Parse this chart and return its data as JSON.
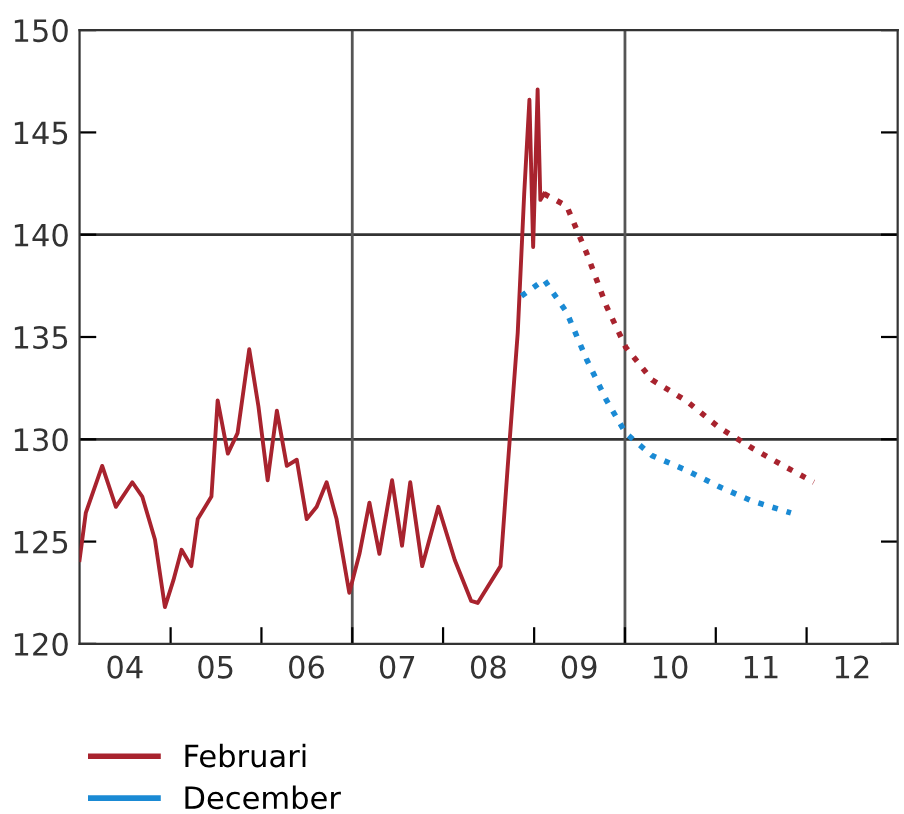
{
  "chart_data": {
    "type": "line",
    "xlim": [
      "2004-01-01",
      "2013-01-01"
    ],
    "xticks": [
      {
        "value": "2005-01-01",
        "label": null
      },
      {
        "value": "2006-01-01",
        "label": null
      },
      {
        "value": "2007-01-01",
        "label": null
      },
      {
        "value": "2008-01-01",
        "label": null
      },
      {
        "value": "2009-01-01",
        "label": null
      },
      {
        "value": "2010-01-01",
        "label": null
      },
      {
        "value": "2011-01-01",
        "label": null
      },
      {
        "value": "2012-01-01",
        "label": null
      },
      {
        "value": "2004-07-01",
        "label": "04"
      },
      {
        "value": "2005-07-01",
        "label": "05"
      },
      {
        "value": "2006-07-01",
        "label": "06"
      },
      {
        "value": "2007-07-01",
        "label": "07"
      },
      {
        "value": "2008-07-01",
        "label": "08"
      },
      {
        "value": "2009-07-01",
        "label": "09"
      },
      {
        "value": "2010-07-01",
        "label": "10"
      },
      {
        "value": "2011-07-01",
        "label": "11"
      },
      {
        "value": "2012-07-01",
        "label": "12"
      }
    ],
    "ylim": [
      120,
      150
    ],
    "yticks": [
      120,
      125,
      130,
      135,
      140,
      145,
      150
    ],
    "ref_lines": [
      {
        "axis": "y",
        "value": 130,
        "color": "#333333"
      },
      {
        "axis": "y",
        "value": 140,
        "color": "#333333"
      },
      {
        "axis": "x",
        "value": "2007-01-01",
        "color": "#555555"
      },
      {
        "axis": "x",
        "value": "2010-01-01",
        "color": "#555555"
      }
    ],
    "legend": "bottom",
    "series": [
      {
        "name": "Februari",
        "color": "#a8232e",
        "line_style": "solid",
        "x": [
          "2004-01-01",
          "2004-01-26",
          "2004-04-01",
          "2004-05-26",
          "2004-07-31",
          "2004-09-09",
          "2004-10-30",
          "2004-12-09",
          "2005-01-12",
          "2005-02-14",
          "2005-03-25",
          "2005-04-20",
          "2005-06-14",
          "2005-07-09",
          "2005-08-19",
          "2005-09-27",
          "2005-11-13",
          "2005-12-20",
          "2006-01-26",
          "2006-03-04",
          "2006-04-13",
          "2006-05-23",
          "2006-07-02",
          "2006-08-11",
          "2006-09-20",
          "2006-10-30",
          "2006-12-20",
          "2007-01-30",
          "2007-03-11",
          "2007-04-20",
          "2007-06-10",
          "2007-07-20",
          "2007-08-22",
          "2007-10-09",
          "2007-12-13",
          "2008-02-17",
          "2008-04-23",
          "2008-05-19",
          "2008-08-19",
          "2008-09-17",
          "2008-10-27",
          "2008-11-22",
          "2008-12-13",
          "2008-12-28",
          "2009-01-15",
          "2009-01-26",
          "2009-02-10"
        ],
        "values": [
          124.1,
          126.4,
          128.7,
          126.7,
          127.9,
          127.2,
          125.1,
          121.8,
          123.1,
          124.6,
          123.8,
          126.1,
          127.2,
          131.9,
          129.3,
          130.3,
          134.4,
          131.6,
          128.0,
          131.4,
          128.7,
          129.0,
          126.1,
          126.7,
          127.9,
          126.1,
          122.5,
          124.4,
          126.9,
          124.4,
          128.0,
          124.8,
          127.9,
          123.8,
          126.7,
          124.1,
          122.1,
          122.0,
          123.8,
          128.7,
          135.2,
          142.0,
          146.6,
          139.4,
          147.1,
          141.7,
          142.0
        ]
      },
      {
        "color": "#a8232e",
        "line_style": "dotted",
        "x": [
          "2009-02-10",
          "2009-05-12",
          "2009-07-31",
          "2009-10-19",
          "2010-01-04",
          "2010-04-20",
          "2010-09-02",
          "2011-01-12",
          "2011-05-23",
          "2011-10-01",
          "2012-01-30"
        ],
        "values": [
          142.0,
          141.4,
          139.1,
          136.5,
          134.5,
          132.9,
          131.9,
          130.6,
          129.6,
          128.7,
          127.9
        ]
      },
      {
        "name": "December",
        "color": "#1a8ad4",
        "line_style": "dotted",
        "x": [
          "2008-11-11",
          "2009-02-10",
          "2009-05-12",
          "2009-07-31",
          "2009-10-19",
          "2010-01-04",
          "2010-04-20",
          "2010-09-02",
          "2011-01-12",
          "2011-05-23",
          "2011-10-30"
        ],
        "values": [
          137.0,
          137.8,
          136.2,
          133.9,
          131.9,
          130.3,
          129.2,
          128.5,
          127.7,
          127.0,
          126.4
        ]
      }
    ]
  }
}
